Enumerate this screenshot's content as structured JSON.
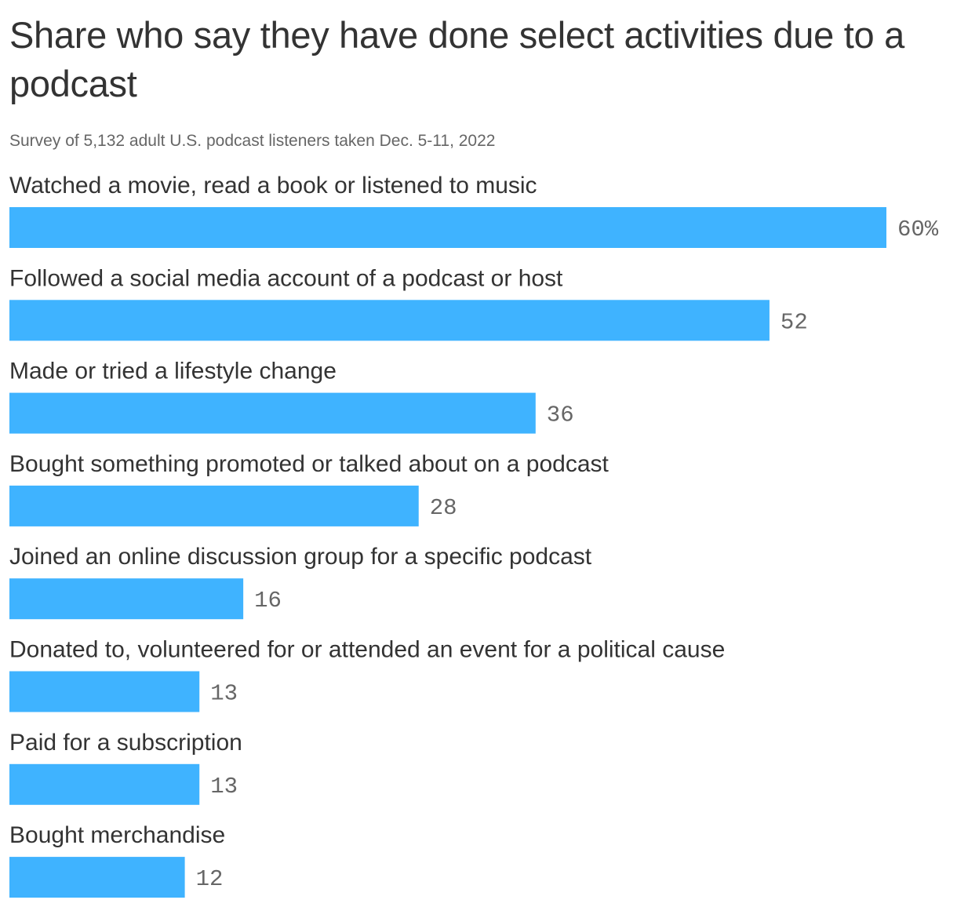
{
  "chart_data": {
    "type": "bar",
    "orientation": "horizontal",
    "title": "Share who say they have done select activities due to a podcast",
    "subtitle": "Survey of 5,132 adult U.S. podcast listeners taken Dec. 5-11, 2022",
    "categories": [
      "Watched a movie, read a book or listened to music",
      "Followed a social media account of a podcast or host",
      "Made or tried a lifestyle change",
      "Bought something promoted or talked about on a podcast",
      "Joined an online discussion group for a specific podcast",
      "Donated to, volunteered for or attended an event for a political cause",
      "Paid for a subscription",
      "Bought merchandise"
    ],
    "values": [
      60,
      52,
      36,
      28,
      16,
      13,
      13,
      12
    ],
    "value_labels": [
      "60%",
      "52",
      "36",
      "28",
      "16",
      "13",
      "13",
      "12"
    ],
    "xlim": [
      0,
      60
    ],
    "grid": false,
    "legend": "none",
    "bar_color": "#3fb3ff"
  }
}
